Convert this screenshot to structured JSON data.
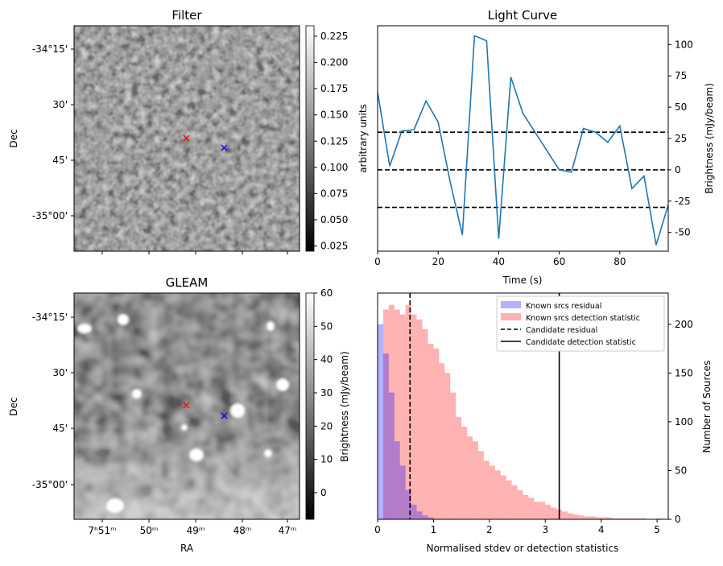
{
  "chart_data": [
    {
      "type": "heatmap",
      "title": "Filter",
      "ylabel": "Dec",
      "y_ticks": [
        "-34°15'",
        "30'",
        "45'",
        "-35°00'"
      ],
      "colorbar": {
        "label": "arbitrary units",
        "min": 0.02,
        "max": 0.235,
        "ticks": [
          "0.025",
          "0.050",
          "0.075",
          "0.100",
          "0.125",
          "0.150",
          "0.175",
          "0.200",
          "0.225"
        ]
      },
      "markers": [
        {
          "symbol": "x",
          "color": "#ff0000"
        },
        {
          "symbol": "x",
          "color": "#0000ff"
        }
      ]
    },
    {
      "type": "line",
      "title": "Light Curve",
      "xlabel": "Time (s)",
      "ylabel": "Brightness (mJy/beam)",
      "xlim": [
        0,
        96
      ],
      "ylim": [
        -65,
        115
      ],
      "x_ticks": [
        "0",
        "20",
        "40",
        "60",
        "80"
      ],
      "y_ticks": [
        "-50",
        "-25",
        "0",
        "25",
        "50",
        "75",
        "100"
      ],
      "x": [
        0,
        4,
        8,
        12,
        16,
        20,
        24,
        28,
        32,
        36,
        40,
        44,
        48,
        52,
        56,
        60,
        64,
        68,
        72,
        76,
        80,
        84,
        88,
        92,
        96
      ],
      "values": [
        62,
        3,
        31,
        32,
        55,
        38,
        -10,
        -52,
        107,
        103,
        -55,
        74,
        45,
        30,
        15,
        0,
        -2,
        33,
        30,
        22,
        35,
        -15,
        -5,
        -60,
        -28
      ],
      "hlines": [
        30,
        0,
        -30
      ],
      "color": "#1f77b4"
    },
    {
      "type": "heatmap",
      "title": "GLEAM",
      "xlabel": "RA",
      "ylabel": "Dec",
      "x_ticks": [
        "7ʰ51ᵐ",
        "50ᵐ",
        "49ᵐ",
        "48ᵐ",
        "47ᵐ"
      ],
      "y_ticks": [
        "-34°15'",
        "30'",
        "45'",
        "-35°00'"
      ],
      "colorbar": {
        "label": "Brightness (mJy/beam)",
        "min": -8,
        "max": 60,
        "ticks": [
          "0",
          "10",
          "20",
          "30",
          "40",
          "50",
          "60"
        ]
      },
      "markers": [
        {
          "symbol": "x",
          "color": "#ff0000"
        },
        {
          "symbol": "x",
          "color": "#0000ff"
        }
      ]
    },
    {
      "type": "bar",
      "xlabel": "Normalised stdev or detection statistics",
      "ylabel": "Number of Sources",
      "xlim": [
        0,
        5.2
      ],
      "ylim": [
        0,
        232
      ],
      "x_ticks": [
        "0",
        "1",
        "2",
        "3",
        "4",
        "5"
      ],
      "y_ticks": [
        "0",
        "50",
        "100",
        "150",
        "200"
      ],
      "bin_width": 0.1,
      "series": [
        {
          "name": "Known srcs residual",
          "color": "#0000ff",
          "alpha": 0.3,
          "bin_start": 0.0,
          "values": [
            200,
            170,
            130,
            80,
            55,
            30,
            15,
            8,
            4,
            2
          ]
        },
        {
          "name": "Known srcs detection statistic",
          "color": "#ff0000",
          "alpha": 0.3,
          "bin_start": 0.1,
          "values": [
            215,
            220,
            215,
            210,
            220,
            210,
            205,
            195,
            180,
            175,
            160,
            150,
            130,
            105,
            95,
            85,
            80,
            70,
            60,
            55,
            50,
            45,
            40,
            35,
            30,
            25,
            22,
            18,
            18,
            15,
            12,
            10,
            8,
            6,
            5,
            4,
            3,
            3,
            2,
            2,
            2,
            1,
            1,
            1,
            1,
            1,
            1,
            0,
            0,
            1
          ]
        }
      ],
      "vlines": [
        {
          "name": "Candidate residual",
          "x": 0.58,
          "style": "dashed"
        },
        {
          "name": "Candidate detection statistic",
          "x": 3.25,
          "style": "solid"
        }
      ]
    }
  ]
}
